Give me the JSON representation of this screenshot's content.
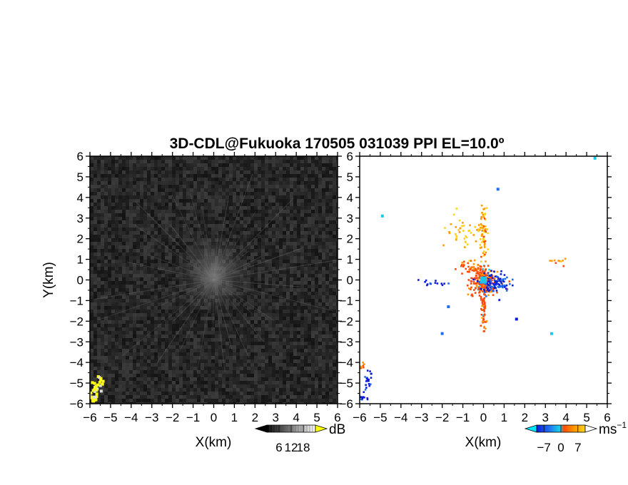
{
  "title": "3D-CDL@Fukuoka 170505 031039 PPI EL=10.0º",
  "chart_data": [
    {
      "type": "heatmap",
      "panel": "left",
      "xlabel": "X(km)",
      "ylabel": "Y(km)",
      "xlim": [
        -6,
        6
      ],
      "ylim": [
        -6,
        6
      ],
      "xticks": [
        "−6",
        "−5",
        "−4",
        "−3",
        "−2",
        "−1",
        "0",
        "1",
        "2",
        "3",
        "4",
        "5",
        "6"
      ],
      "yticks": [
        "−6",
        "−5",
        "−4",
        "−3",
        "−2",
        "−1",
        "0",
        "1",
        "2",
        "3",
        "4",
        "5",
        "6"
      ],
      "colormap": "grayscale",
      "background_color": "#222222",
      "colorbar": {
        "unit": "dB",
        "ticks": [
          "6",
          "12",
          "18"
        ],
        "range": [
          0,
          24
        ]
      },
      "features": [
        {
          "x": 0,
          "y": 0.3,
          "radius": 1.3,
          "level": 0.45
        },
        {
          "x": -5.7,
          "y": -5.0,
          "radius": 0.3,
          "level": 1.0
        },
        {
          "x": -5.9,
          "y": -5.6,
          "radius": 0.25,
          "level": 1.0
        }
      ]
    },
    {
      "type": "scatter",
      "panel": "right",
      "xlabel": "X(km)",
      "xlim": [
        -6,
        6
      ],
      "ylim": [
        -6,
        6
      ],
      "xticks": [
        "−6",
        "−5",
        "−4",
        "−3",
        "−2",
        "−1",
        "0",
        "1",
        "2",
        "3",
        "4",
        "5",
        "6"
      ],
      "yticks": [
        "−6",
        "−5",
        "−4",
        "−3",
        "−2",
        "−1",
        "0",
        "1",
        "2",
        "3",
        "4",
        "5",
        "6"
      ],
      "colorbar": {
        "unit": "ms",
        "unit_sup": "−1",
        "ticks": [
          "−7",
          "0",
          "7"
        ],
        "range": [
          -10,
          10
        ]
      },
      "colors": {
        "strong_negative": "#0a1cd8",
        "negative": "#1f6df0",
        "weak_negative": "#2ec4e6",
        "near_zero": "#19c7e8",
        "positive": "#ff4a0a",
        "strong_positive": "#ff9a00",
        "very_strong_positive": "#ffd21a"
      },
      "clusters": [
        {
          "x": 0.0,
          "y": -0.1,
          "sx": 0.35,
          "sy": 0.35,
          "n": 240,
          "velocity": 3
        },
        {
          "x": 0.55,
          "y": -0.2,
          "sx": 0.35,
          "sy": 0.25,
          "n": 120,
          "velocity": -6
        },
        {
          "x": 0.0,
          "y": 2.3,
          "sx": 0.08,
          "sy": 0.7,
          "n": 70,
          "velocity": 6
        },
        {
          "x": -1.1,
          "y": 2.3,
          "sx": 0.5,
          "sy": 0.35,
          "n": 40,
          "velocity": 7
        },
        {
          "x": 0.0,
          "y": -1.6,
          "sx": 0.07,
          "sy": 0.6,
          "n": 50,
          "velocity": 3
        },
        {
          "x": -0.6,
          "y": 0.6,
          "sx": 0.3,
          "sy": 0.25,
          "n": 40,
          "velocity": 4
        },
        {
          "x": 3.7,
          "y": 0.9,
          "sx": 0.25,
          "sy": 0.1,
          "n": 10,
          "velocity": 6
        },
        {
          "x": -2.6,
          "y": -0.15,
          "sx": 0.35,
          "sy": 0.05,
          "n": 14,
          "velocity": -7
        },
        {
          "x": -5.6,
          "y": -4.8,
          "sx": 0.08,
          "sy": 0.22,
          "n": 20,
          "velocity": -7
        },
        {
          "x": -5.9,
          "y": -4.2,
          "sx": 0.05,
          "sy": 0.1,
          "n": 8,
          "velocity": 3
        },
        {
          "x": -5.8,
          "y": -5.75,
          "sx": 0.15,
          "sy": 0.15,
          "n": 14,
          "velocity": -7
        }
      ],
      "points": [
        {
          "x": 0.0,
          "y": 0.0,
          "velocity": 0,
          "size": 2.4
        },
        {
          "x": -4.9,
          "y": 3.1,
          "velocity": 0,
          "size": 1
        },
        {
          "x": 5.4,
          "y": 5.9,
          "velocity": 0,
          "size": 1
        },
        {
          "x": 3.3,
          "y": -2.6,
          "velocity": 0,
          "size": 1
        },
        {
          "x": 0.7,
          "y": 4.4,
          "velocity": -2,
          "size": 1
        },
        {
          "x": -1.7,
          "y": -1.3,
          "velocity": -2,
          "size": 1
        },
        {
          "x": -2.0,
          "y": -2.6,
          "velocity": -2,
          "size": 1
        },
        {
          "x": 1.6,
          "y": -1.9,
          "velocity": -7,
          "size": 1
        }
      ]
    }
  ]
}
